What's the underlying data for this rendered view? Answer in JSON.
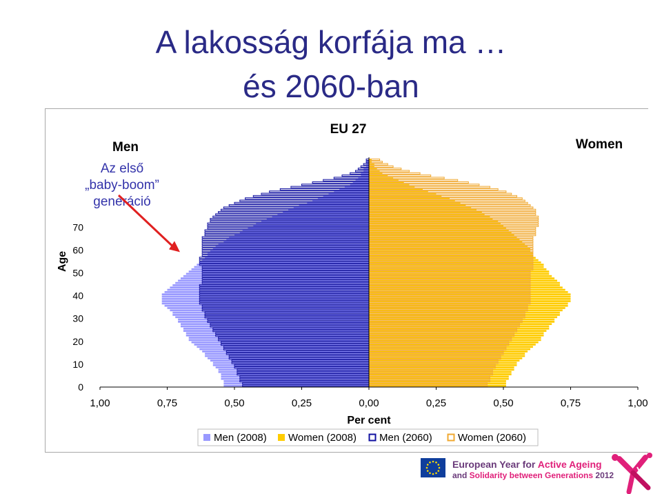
{
  "slide": {
    "title_line1": "A lakosság korfája ma …",
    "title_line2": "és 2060-ban"
  },
  "annotation": {
    "lines": [
      "Az első",
      "„baby-boom”",
      "generáció"
    ],
    "arrow_target_age": 60,
    "arrow_color": "#e02020"
  },
  "footer": {
    "line1_prefix": "European Year for ",
    "line1_highlight": "Active Ageing",
    "line2_prefix": "and ",
    "line2_highlight": "Solidarity between Generations",
    "line2_suffix": " 2012",
    "colors": {
      "text": "#6a3a7a",
      "highlight": "#e0207a",
      "flag": "#0f3e9c"
    }
  },
  "chart_data": {
    "type": "bar",
    "orientation": "horizontal-population-pyramid",
    "title": "EU 27",
    "left_label": "Men",
    "right_label": "Women",
    "ylabel": "Age",
    "xlabel": "Per cent",
    "x_ticks": [
      "1,00",
      "0,75",
      "0,50",
      "0,25",
      "0,00",
      "0,25",
      "0,50",
      "0,75",
      "1,00"
    ],
    "xlim": [
      -1.0,
      1.0
    ],
    "y_ticks": [
      0,
      10,
      20,
      30,
      40,
      50,
      60,
      70
    ],
    "ylim": [
      0,
      100
    ],
    "ages_from": 0,
    "ages_to": 99,
    "legend": [
      {
        "label": "Men (2008)",
        "style": "filled",
        "color": "#9999ff"
      },
      {
        "label": "Women (2008)",
        "style": "filled",
        "color": "#ffcc00"
      },
      {
        "label": "Men (2060)",
        "style": "outline",
        "color": "#1010a0"
      },
      {
        "label": "Women (2060)",
        "style": "outline",
        "color": "#f0a830"
      }
    ],
    "series": [
      {
        "name": "Men (2008)",
        "side": "left",
        "values": [
          0.54,
          0.54,
          0.54,
          0.55,
          0.55,
          0.55,
          0.56,
          0.56,
          0.57,
          0.58,
          0.58,
          0.59,
          0.6,
          0.61,
          0.61,
          0.62,
          0.63,
          0.64,
          0.65,
          0.66,
          0.67,
          0.67,
          0.68,
          0.68,
          0.69,
          0.69,
          0.7,
          0.7,
          0.71,
          0.71,
          0.72,
          0.73,
          0.73,
          0.74,
          0.75,
          0.76,
          0.77,
          0.77,
          0.77,
          0.77,
          0.77,
          0.76,
          0.75,
          0.74,
          0.73,
          0.72,
          0.71,
          0.7,
          0.69,
          0.68,
          0.67,
          0.66,
          0.65,
          0.64,
          0.63,
          0.62,
          0.61,
          0.6,
          0.6,
          0.59,
          0.58,
          0.57,
          0.56,
          0.54,
          0.53,
          0.52,
          0.5,
          0.48,
          0.47,
          0.45,
          0.43,
          0.42,
          0.4,
          0.38,
          0.36,
          0.34,
          0.32,
          0.3,
          0.28,
          0.26,
          0.23,
          0.21,
          0.19,
          0.17,
          0.15,
          0.13,
          0.11,
          0.09,
          0.07,
          0.06,
          0.05,
          0.04,
          0.03,
          0.03,
          0.02,
          0.02,
          0.01,
          0.01,
          0.01,
          0.0
        ]
      },
      {
        "name": "Women (2008)",
        "side": "right",
        "values": [
          0.51,
          0.51,
          0.51,
          0.52,
          0.52,
          0.53,
          0.53,
          0.54,
          0.54,
          0.55,
          0.55,
          0.56,
          0.57,
          0.58,
          0.58,
          0.59,
          0.6,
          0.61,
          0.62,
          0.63,
          0.64,
          0.64,
          0.65,
          0.65,
          0.66,
          0.67,
          0.67,
          0.68,
          0.69,
          0.69,
          0.7,
          0.71,
          0.71,
          0.72,
          0.73,
          0.74,
          0.74,
          0.75,
          0.75,
          0.75,
          0.75,
          0.74,
          0.73,
          0.72,
          0.71,
          0.71,
          0.7,
          0.69,
          0.68,
          0.67,
          0.67,
          0.66,
          0.65,
          0.65,
          0.64,
          0.63,
          0.62,
          0.61,
          0.61,
          0.6,
          0.6,
          0.59,
          0.58,
          0.57,
          0.56,
          0.55,
          0.54,
          0.53,
          0.52,
          0.51,
          0.5,
          0.49,
          0.48,
          0.46,
          0.45,
          0.43,
          0.42,
          0.4,
          0.38,
          0.36,
          0.34,
          0.32,
          0.3,
          0.27,
          0.25,
          0.22,
          0.2,
          0.17,
          0.15,
          0.13,
          0.11,
          0.09,
          0.07,
          0.05,
          0.04,
          0.03,
          0.02,
          0.02,
          0.01,
          0.01
        ]
      },
      {
        "name": "Men (2060)",
        "side": "left",
        "values": [
          0.47,
          0.47,
          0.48,
          0.48,
          0.48,
          0.49,
          0.49,
          0.49,
          0.5,
          0.5,
          0.51,
          0.51,
          0.52,
          0.52,
          0.53,
          0.53,
          0.54,
          0.54,
          0.55,
          0.55,
          0.56,
          0.56,
          0.57,
          0.57,
          0.58,
          0.58,
          0.59,
          0.59,
          0.6,
          0.6,
          0.61,
          0.61,
          0.61,
          0.62,
          0.62,
          0.62,
          0.63,
          0.63,
          0.63,
          0.63,
          0.63,
          0.63,
          0.63,
          0.63,
          0.63,
          0.62,
          0.62,
          0.62,
          0.62,
          0.62,
          0.62,
          0.62,
          0.62,
          0.63,
          0.63,
          0.63,
          0.63,
          0.62,
          0.62,
          0.62,
          0.62,
          0.62,
          0.62,
          0.62,
          0.62,
          0.62,
          0.61,
          0.61,
          0.61,
          0.6,
          0.6,
          0.6,
          0.59,
          0.59,
          0.58,
          0.57,
          0.56,
          0.55,
          0.54,
          0.52,
          0.5,
          0.48,
          0.46,
          0.43,
          0.4,
          0.37,
          0.33,
          0.29,
          0.25,
          0.21,
          0.17,
          0.13,
          0.1,
          0.07,
          0.05,
          0.04,
          0.03,
          0.02,
          0.01,
          0.01
        ]
      },
      {
        "name": "Women (2060)",
        "side": "right",
        "values": [
          0.44,
          0.44,
          0.45,
          0.45,
          0.45,
          0.46,
          0.46,
          0.46,
          0.47,
          0.47,
          0.48,
          0.48,
          0.49,
          0.49,
          0.5,
          0.5,
          0.51,
          0.51,
          0.52,
          0.52,
          0.53,
          0.53,
          0.54,
          0.54,
          0.55,
          0.55,
          0.56,
          0.56,
          0.57,
          0.57,
          0.58,
          0.58,
          0.58,
          0.59,
          0.59,
          0.59,
          0.6,
          0.6,
          0.6,
          0.6,
          0.6,
          0.6,
          0.6,
          0.6,
          0.6,
          0.6,
          0.6,
          0.6,
          0.6,
          0.6,
          0.6,
          0.61,
          0.61,
          0.61,
          0.61,
          0.61,
          0.61,
          0.61,
          0.61,
          0.61,
          0.61,
          0.61,
          0.61,
          0.61,
          0.61,
          0.61,
          0.62,
          0.62,
          0.62,
          0.62,
          0.63,
          0.63,
          0.63,
          0.63,
          0.63,
          0.62,
          0.62,
          0.62,
          0.61,
          0.6,
          0.59,
          0.58,
          0.57,
          0.55,
          0.53,
          0.51,
          0.48,
          0.45,
          0.41,
          0.37,
          0.33,
          0.28,
          0.23,
          0.19,
          0.15,
          0.12,
          0.09,
          0.07,
          0.05,
          0.04
        ]
      }
    ]
  }
}
